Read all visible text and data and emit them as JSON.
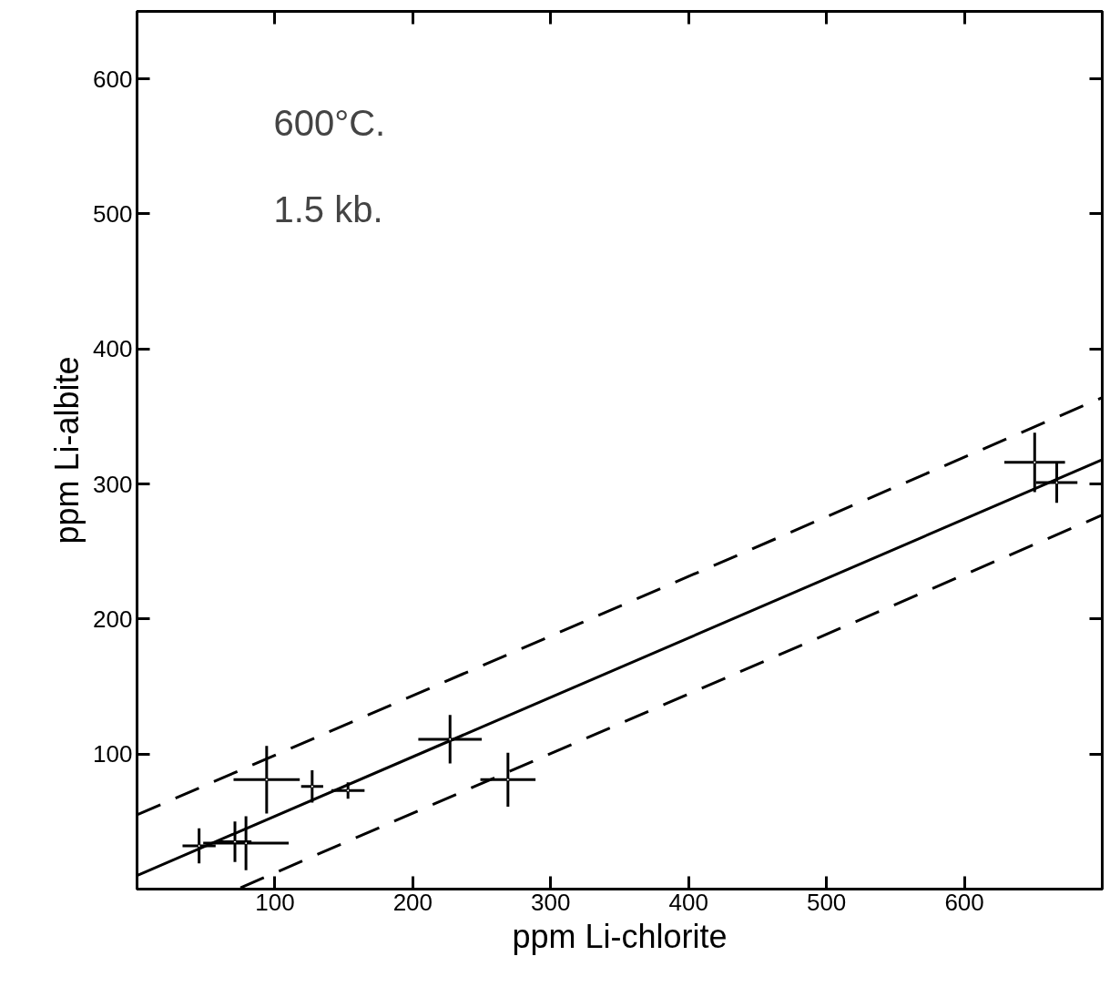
{
  "chart_data": {
    "type": "scatter",
    "xlabel": "ppm Li-chlorite",
    "ylabel": "ppm Li-albite",
    "annotations": [
      "600°C.",
      "1.5 kb."
    ],
    "xlim": [
      0,
      700
    ],
    "ylim": [
      0,
      650
    ],
    "xticks": [
      100,
      200,
      300,
      400,
      500,
      600
    ],
    "yticks": [
      100,
      200,
      300,
      400,
      500,
      600
    ],
    "grid": false,
    "marker": "none",
    "series": [
      {
        "color": "#000000",
        "x": [
          45,
          71,
          79,
          94,
          127,
          153,
          227,
          269,
          651,
          667
        ],
        "values": [
          32,
          35,
          34,
          81,
          76,
          73,
          111,
          81,
          316,
          301
        ],
        "xerrors": [
          12,
          12,
          31,
          24,
          8,
          12,
          23,
          20,
          22,
          15
        ],
        "errors": [
          13,
          15,
          20,
          25,
          12,
          6,
          18,
          20,
          22,
          15
        ]
      },
      {
        "type": "line",
        "color": "#000000",
        "line_style": "solid",
        "x": [
          0,
          700
        ],
        "values": [
          10,
          318
        ]
      },
      {
        "type": "line",
        "color": "#000000",
        "line_style": "dashed",
        "x": [
          0,
          700
        ],
        "values": [
          55,
          364
        ]
      },
      {
        "type": "line",
        "color": "#000000",
        "line_style": "dashed",
        "x": [
          75,
          700
        ],
        "values": [
          1,
          277
        ]
      }
    ]
  }
}
